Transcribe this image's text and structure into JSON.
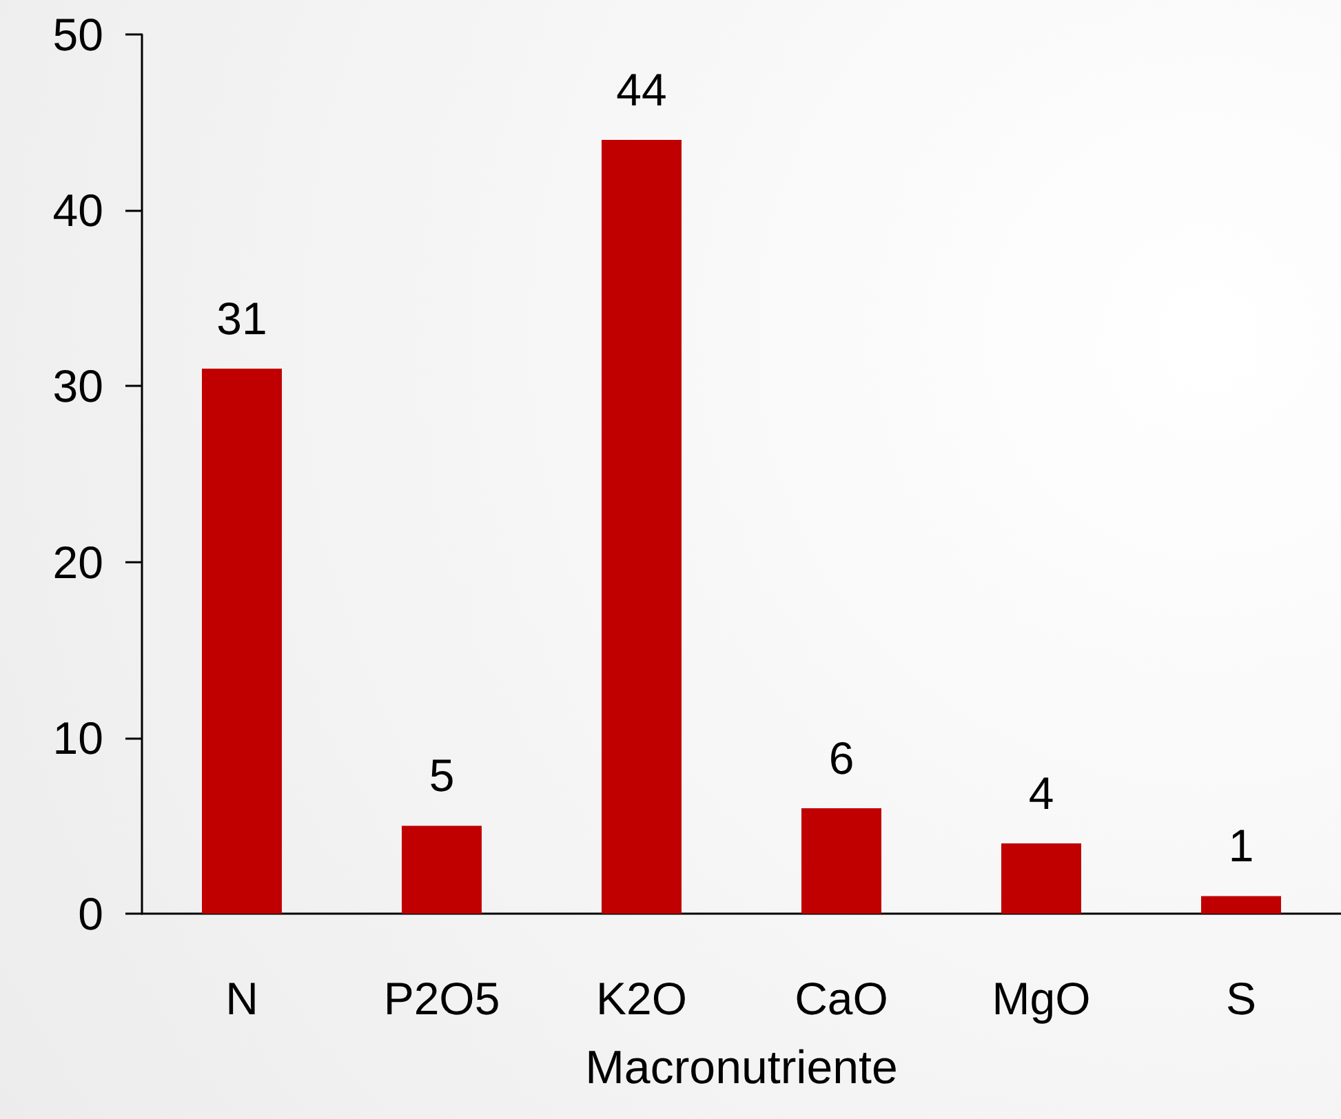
{
  "chart_data": {
    "type": "bar",
    "xlabel": "Macronutriente",
    "categories": [
      "N",
      "P2O5",
      "K2O",
      "CaO",
      "MgO",
      "S"
    ],
    "values": [
      31,
      5,
      44,
      6,
      4,
      1
    ],
    "color": "#c00000",
    "ylim": [
      0,
      50
    ],
    "yticks": [
      0,
      10,
      20,
      30,
      40,
      50
    ],
    "grid": false,
    "data_labels": true
  }
}
